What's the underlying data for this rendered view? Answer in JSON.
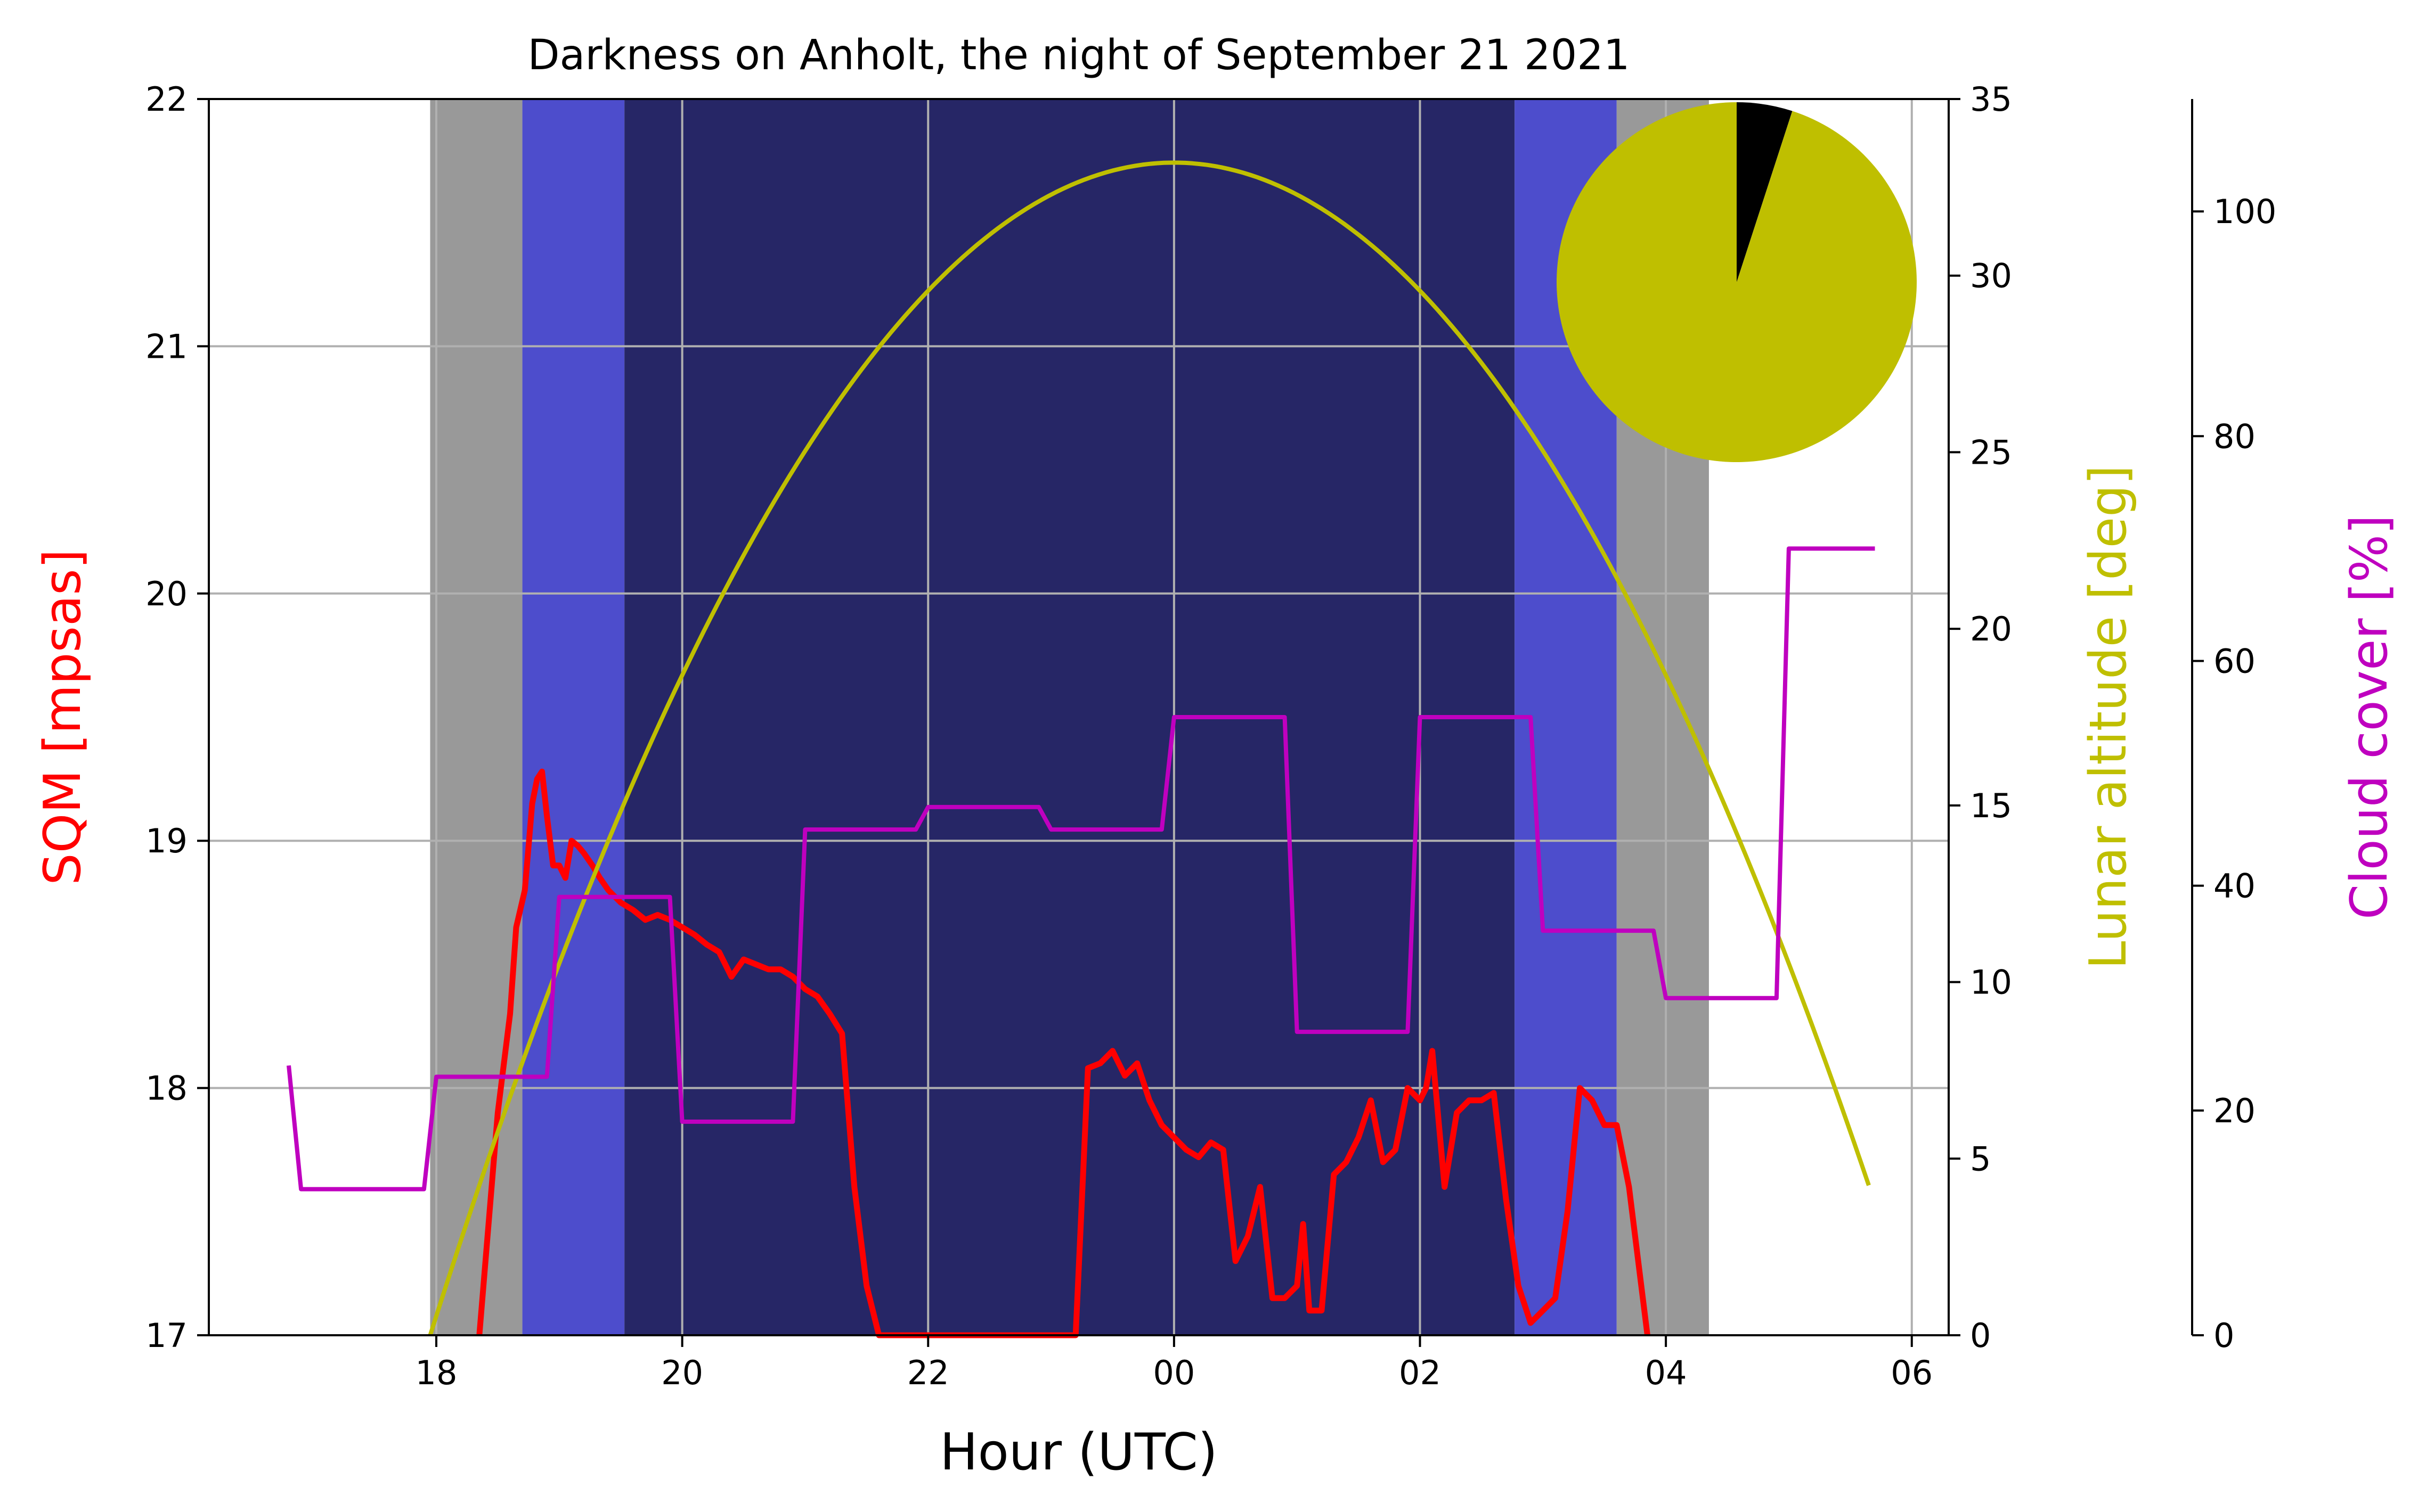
{
  "chart_data": {
    "type": "line",
    "title": "Darkness on Anholt, the night of September 21 2021",
    "xlabel": "Hour (UTC)",
    "xlim": [
      16.15,
      30.3
    ],
    "x_ticks": [
      {
        "value": 18,
        "label": "18"
      },
      {
        "value": 20,
        "label": "20"
      },
      {
        "value": 22,
        "label": "22"
      },
      {
        "value": 24,
        "label": "00"
      },
      {
        "value": 26,
        "label": "02"
      },
      {
        "value": 28,
        "label": "04"
      },
      {
        "value": 30,
        "label": "06"
      }
    ],
    "grid": true,
    "axes": {
      "sqm": {
        "label": "SQM [mpsas]",
        "color": "#ff0000",
        "ylim": [
          17,
          22
        ],
        "ticks": [
          17,
          18,
          19,
          20,
          21,
          22
        ]
      },
      "lunar": {
        "label": "Lunar altitude [deg]",
        "color": "#bfbf00",
        "ylim": [
          0,
          35
        ],
        "ticks": [
          0,
          5,
          10,
          15,
          20,
          25,
          30,
          35
        ]
      },
      "cloud": {
        "label": "Cloud cover [%]",
        "color": "#bf00bf",
        "ylim": [
          0,
          110
        ],
        "ticks": [
          0,
          20,
          40,
          60,
          80,
          100
        ]
      }
    },
    "darkness_bands": [
      {
        "start": 17.95,
        "end": 18.7,
        "color": "#999999"
      },
      {
        "start": 18.7,
        "end": 19.53,
        "color": "#4d4dcc"
      },
      {
        "start": 19.53,
        "end": 26.77,
        "color": "#262666"
      },
      {
        "start": 26.77,
        "end": 27.6,
        "color": "#4d4dcc"
      },
      {
        "start": 27.6,
        "end": 28.35,
        "color": "#999999"
      }
    ],
    "series": [
      {
        "axis": "sqm",
        "color": "#ff0000",
        "x": [
          18.35,
          18.5,
          18.6,
          18.65,
          18.72,
          18.78,
          18.82,
          18.86,
          18.9,
          18.95,
          19.0,
          19.05,
          19.1,
          19.15,
          19.2,
          19.27,
          19.33,
          19.4,
          19.5,
          19.6,
          19.7,
          19.8,
          19.9,
          20.0,
          20.1,
          20.2,
          20.3,
          20.4,
          20.5,
          20.6,
          20.7,
          20.8,
          20.9,
          21.0,
          21.1,
          21.2,
          21.3,
          21.4,
          21.5,
          21.6,
          21.7,
          21.8,
          21.9,
          22.0,
          22.05,
          22.15,
          22.25,
          23.2,
          23.3,
          23.4,
          23.5,
          23.6,
          23.7,
          23.8,
          23.9,
          24.0,
          24.1,
          24.2,
          24.3,
          24.4,
          24.5,
          24.6,
          24.7,
          24.8,
          24.9,
          25.0,
          25.05,
          25.1,
          25.2,
          25.3,
          25.4,
          25.5,
          25.6,
          25.7,
          25.8,
          25.9,
          26.0,
          26.05,
          26.1,
          26.2,
          26.3,
          26.4,
          26.5,
          26.6,
          26.7,
          26.8,
          26.9,
          27.0,
          27.1,
          27.2,
          27.3,
          27.4,
          27.5,
          27.6,
          27.7,
          27.85
        ],
        "y": [
          17.0,
          17.9,
          18.3,
          18.65,
          18.8,
          19.15,
          19.25,
          19.28,
          19.1,
          18.9,
          18.9,
          18.85,
          19.0,
          18.98,
          18.95,
          18.9,
          18.85,
          18.8,
          18.75,
          18.72,
          18.68,
          18.7,
          18.68,
          18.65,
          18.62,
          18.58,
          18.55,
          18.45,
          18.52,
          18.5,
          18.48,
          18.48,
          18.45,
          18.4,
          18.37,
          18.3,
          18.22,
          17.6,
          17.2,
          17.0,
          17.0,
          17.0,
          17.0,
          17.0,
          17.0,
          17.0,
          17.0,
          17.0,
          18.08,
          18.1,
          18.15,
          18.05,
          18.1,
          17.95,
          17.85,
          17.8,
          17.75,
          17.72,
          17.78,
          17.75,
          17.3,
          17.4,
          17.6,
          17.15,
          17.15,
          17.2,
          17.45,
          17.1,
          17.1,
          17.65,
          17.7,
          17.8,
          17.95,
          17.7,
          17.75,
          18.0,
          17.95,
          18.0,
          18.15,
          17.6,
          17.9,
          17.95,
          17.95,
          17.98,
          17.55,
          17.2,
          17.05,
          17.1,
          17.15,
          17.5,
          18.0,
          17.95,
          17.85,
          17.85,
          17.6,
          17.0
        ]
      },
      {
        "axis": "lunar",
        "color": "#bfbf00",
        "curve": {
          "type": "parabola",
          "x_start": 17.95,
          "x_end": 29.65,
          "peak_x": 24.0,
          "peak_y": 33.2,
          "y_at_start": 0.0
        }
      },
      {
        "axis": "cloud",
        "color": "#bf00bf",
        "x": [
          16.8,
          16.9,
          17.9,
          18.0,
          18.9,
          19.0,
          19.9,
          20.0,
          20.9,
          21.0,
          21.9,
          22.0,
          22.9,
          23.0,
          23.9,
          24.0,
          24.9,
          25.0,
          25.9,
          26.0,
          26.9,
          27.0,
          27.9,
          28.0,
          28.9,
          29.0,
          29.7
        ],
        "y": [
          24,
          13,
          13,
          23,
          23,
          39,
          39,
          19,
          19,
          45,
          45,
          47,
          47,
          45,
          45,
          55,
          55,
          27,
          27,
          55,
          55,
          36,
          36,
          30,
          30,
          70,
          70
        ]
      }
    ],
    "inset_pie": {
      "fractions": [
        0.95,
        0.05
      ],
      "colors": [
        "#bfbf00",
        "#000000"
      ]
    }
  }
}
